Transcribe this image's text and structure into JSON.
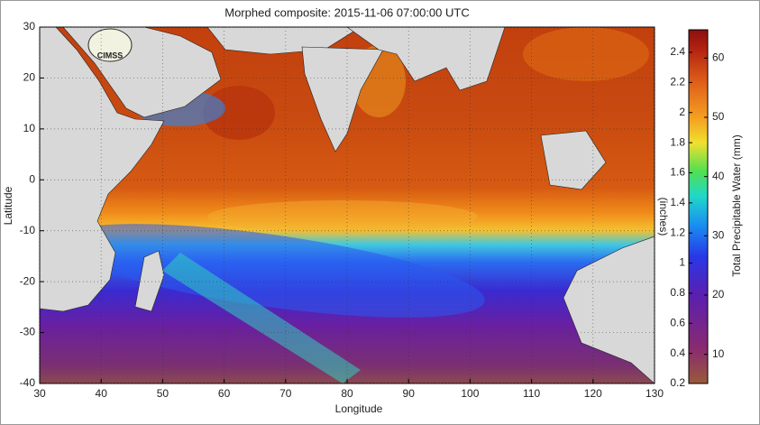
{
  "title": "Morphed composite: 2015-11-06 07:00:00 UTC",
  "logo": "CIMSS",
  "map": {
    "xlabel": "Longitude",
    "ylabel": "Latitude",
    "xlim": [
      30,
      130
    ],
    "ylim": [
      -40,
      30
    ],
    "xticks": [
      30,
      40,
      50,
      60,
      70,
      80,
      90,
      100,
      110,
      120,
      130
    ],
    "yticks": [
      -40,
      -30,
      -20,
      -10,
      0,
      10,
      20,
      30
    ],
    "grid": true
  },
  "colorbar": {
    "left_label": "(inches)",
    "right_label": "Total Precipitable Water (mm)",
    "inch_lim": [
      0.2,
      2.55
    ],
    "inch_ticks": [
      0.2,
      0.4,
      0.6,
      0.8,
      1,
      1.2,
      1.4,
      1.6,
      1.8,
      2,
      2.2,
      2.4
    ],
    "mm_lim": [
      5.08,
      64.77
    ],
    "mm_ticks": [
      10,
      20,
      30,
      40,
      50,
      60
    ]
  }
}
